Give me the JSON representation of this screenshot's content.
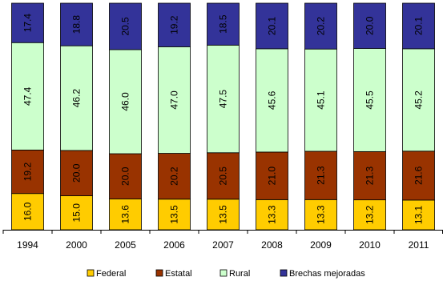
{
  "chart_data": {
    "type": "bar",
    "stacked": true,
    "value_format": "percent-100",
    "categories": [
      "1994",
      "2000",
      "2005",
      "2006",
      "2007",
      "2008",
      "2009",
      "2010",
      "2011"
    ],
    "series": [
      {
        "name": "Federal",
        "color": "#FFCC00",
        "values": [
          16.0,
          15.0,
          13.6,
          13.5,
          13.5,
          13.3,
          13.3,
          13.2,
          13.1
        ],
        "labels": [
          "16.0",
          "15.0",
          "13.6",
          "13.5",
          "13.5",
          "13.3",
          "13.3",
          "13.2",
          "13.1"
        ]
      },
      {
        "name": "Estatal",
        "color": "#993300",
        "values": [
          19.2,
          20.0,
          20.0,
          20.2,
          20.5,
          21.0,
          21.3,
          21.3,
          21.6
        ],
        "labels": [
          "19.2",
          "20.0",
          "20.0",
          "20.2",
          "20.5",
          "21.0",
          "21.3",
          "21.3",
          "21.6"
        ]
      },
      {
        "name": "Rural",
        "color": "#CCFFCC",
        "values": [
          47.4,
          46.2,
          46.0,
          47.0,
          47.5,
          45.6,
          45.1,
          45.5,
          45.2
        ],
        "labels": [
          "47.4",
          "46.2",
          "46.0",
          "47.0",
          "47.5",
          "45.6",
          "45.1",
          "45.5",
          "45.2"
        ]
      },
      {
        "name": "Brechas mejoradas",
        "color": "#333399",
        "values": [
          17.4,
          18.8,
          20.5,
          19.2,
          18.5,
          20.1,
          20.2,
          20.0,
          20.1
        ],
        "labels": [
          "17.4",
          "18.8",
          "20.5",
          "19.2",
          "18.5",
          "20.1",
          "20.2",
          "20.0",
          "20.1"
        ]
      }
    ],
    "title": "",
    "xlabel": "",
    "ylabel": "",
    "ylim": [
      0,
      100
    ],
    "grid": false,
    "legend": "bottom",
    "data_labels": "inside-rotated"
  }
}
